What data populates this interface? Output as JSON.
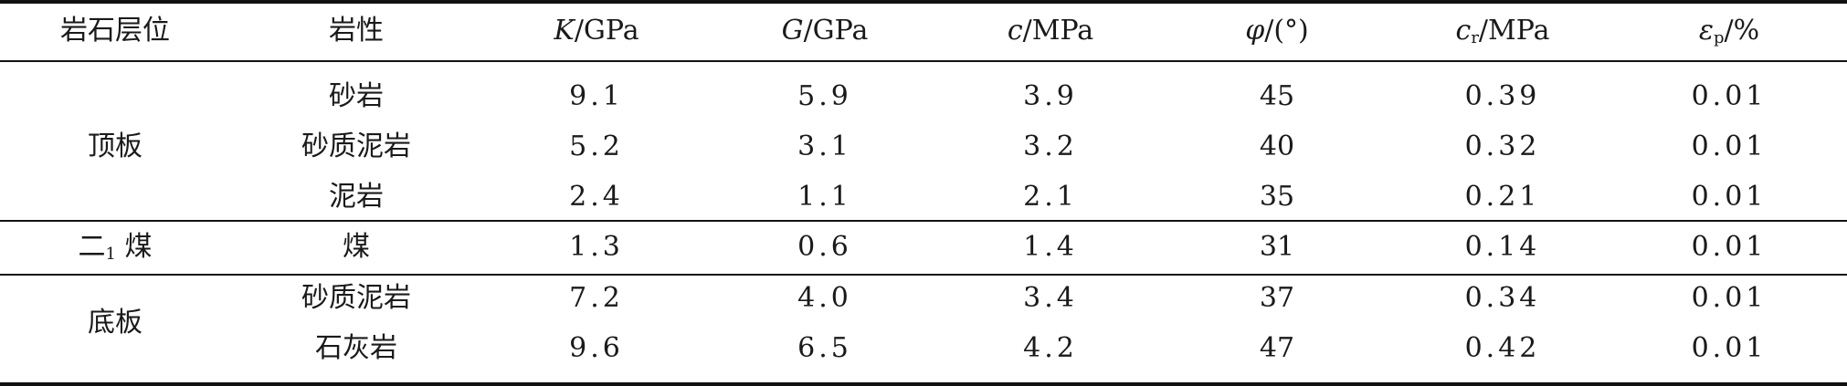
{
  "table": {
    "headers": {
      "layer": "岩石层位",
      "lithology": "岩性",
      "K": {
        "sym": "K",
        "unit": "/GPa"
      },
      "G": {
        "sym": "G",
        "unit": "/GPa"
      },
      "c": {
        "sym": "c",
        "unit": "/MPa"
      },
      "phi": {
        "sym": "φ",
        "unit": "/(°)"
      },
      "cr": {
        "sym": "c",
        "sub": "r",
        "unit": "/MPa"
      },
      "ep": {
        "sym": "ε",
        "sub": "p",
        "unit": "/%"
      }
    },
    "groups": [
      {
        "name": "顶板",
        "name_sub": ""
      },
      {
        "name": "二",
        "name_sub": "1",
        "name_suffix": " 煤"
      },
      {
        "name": "底板",
        "name_sub": ""
      }
    ],
    "rows": [
      {
        "lithology": "砂岩",
        "K": "9.1",
        "G": "5.9",
        "c": "3.9",
        "phi": "45",
        "cr": "0.39",
        "ep": "0.01"
      },
      {
        "lithology": "砂质泥岩",
        "K": "5.2",
        "G": "3.1",
        "c": "3.2",
        "phi": "40",
        "cr": "0.32",
        "ep": "0.01"
      },
      {
        "lithology": "泥岩",
        "K": "2.4",
        "G": "1.1",
        "c": "2.1",
        "phi": "35",
        "cr": "0.21",
        "ep": "0.01"
      },
      {
        "lithology": "煤",
        "K": "1.3",
        "G": "0.6",
        "c": "1.4",
        "phi": "31",
        "cr": "0.14",
        "ep": "0.01"
      },
      {
        "lithology": "砂质泥岩",
        "K": "7.2",
        "G": "4.0",
        "c": "3.4",
        "phi": "37",
        "cr": "0.34",
        "ep": "0.01"
      },
      {
        "lithology": "石灰岩",
        "K": "9.6",
        "G": "6.5",
        "c": "4.2",
        "phi": "47",
        "cr": "0.42",
        "ep": "0.01"
      }
    ]
  }
}
